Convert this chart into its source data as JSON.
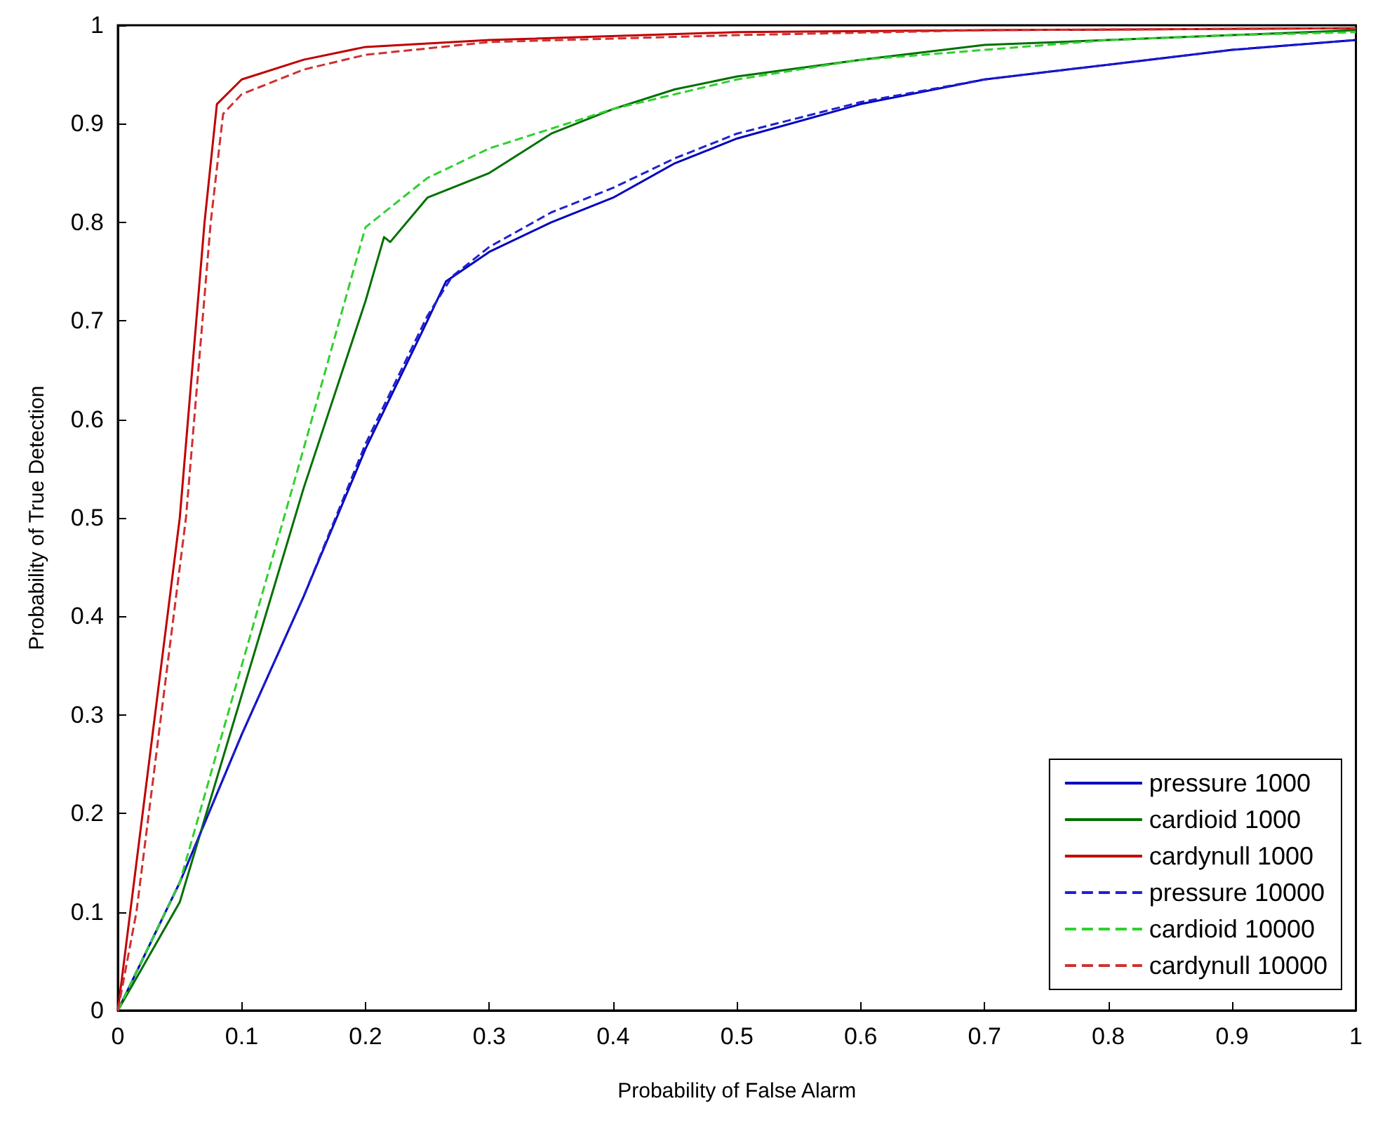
{
  "chart_data": {
    "type": "line",
    "xlabel": "Probability of False Alarm",
    "ylabel": "Probability of True Detection",
    "xlim": [
      0,
      1
    ],
    "ylim": [
      0,
      1
    ],
    "xticks": [
      0,
      0.1,
      0.2,
      0.3,
      0.4,
      0.5,
      0.6,
      0.7,
      0.8,
      0.9,
      1
    ],
    "yticks": [
      0,
      0.1,
      0.2,
      0.3,
      0.4,
      0.5,
      0.6,
      0.7,
      0.8,
      0.9,
      1
    ],
    "grid": false,
    "legend": "bottom right",
    "marker": "none",
    "series": [
      {
        "name": "pressure 1000",
        "color": "#0000c0",
        "line_style": "solid",
        "x": [
          0,
          0.05,
          0.1,
          0.15,
          0.2,
          0.25,
          0.265,
          0.3,
          0.35,
          0.4,
          0.45,
          0.5,
          0.6,
          0.7,
          0.8,
          0.9,
          1
        ],
        "values": [
          0,
          0.13,
          0.28,
          0.42,
          0.57,
          0.7,
          0.74,
          0.77,
          0.8,
          0.825,
          0.86,
          0.885,
          0.92,
          0.945,
          0.96,
          0.975,
          0.985
        ]
      },
      {
        "name": "cardioid 1000",
        "color": "#007000",
        "line_style": "solid",
        "x": [
          0,
          0.05,
          0.1,
          0.15,
          0.2,
          0.215,
          0.22,
          0.25,
          0.3,
          0.35,
          0.4,
          0.45,
          0.5,
          0.6,
          0.7,
          0.8,
          0.9,
          1
        ],
        "values": [
          0,
          0.11,
          0.32,
          0.53,
          0.72,
          0.785,
          0.78,
          0.825,
          0.85,
          0.89,
          0.915,
          0.935,
          0.948,
          0.965,
          0.98,
          0.985,
          0.99,
          0.995
        ]
      },
      {
        "name": "cardynull 1000",
        "color": "#c00000",
        "line_style": "solid",
        "x": [
          0,
          0.01,
          0.03,
          0.05,
          0.07,
          0.08,
          0.1,
          0.15,
          0.2,
          0.3,
          0.5,
          0.7,
          1
        ],
        "values": [
          0,
          0.1,
          0.3,
          0.5,
          0.8,
          0.92,
          0.945,
          0.965,
          0.978,
          0.985,
          0.993,
          0.995,
          0.997
        ]
      },
      {
        "name": "pressure 10000",
        "color": "#2020d0",
        "line_style": "dashed",
        "x": [
          0,
          0.05,
          0.1,
          0.15,
          0.2,
          0.25,
          0.27,
          0.3,
          0.35,
          0.4,
          0.45,
          0.5,
          0.6,
          0.7,
          0.8,
          0.9,
          1
        ],
        "values": [
          0,
          0.13,
          0.28,
          0.42,
          0.575,
          0.705,
          0.745,
          0.775,
          0.81,
          0.835,
          0.865,
          0.89,
          0.922,
          0.945,
          0.96,
          0.975,
          0.985
        ]
      },
      {
        "name": "cardioid 10000",
        "color": "#30d030",
        "line_style": "dashed",
        "x": [
          0,
          0.05,
          0.1,
          0.15,
          0.2,
          0.25,
          0.3,
          0.4,
          0.5,
          0.6,
          0.7,
          0.8,
          0.9,
          1
        ],
        "values": [
          0,
          0.13,
          0.35,
          0.57,
          0.795,
          0.845,
          0.875,
          0.915,
          0.945,
          0.965,
          0.975,
          0.985,
          0.99,
          0.993
        ]
      },
      {
        "name": "cardynull 10000",
        "color": "#d03030",
        "line_style": "dashed",
        "x": [
          0,
          0.015,
          0.035,
          0.055,
          0.075,
          0.085,
          0.1,
          0.15,
          0.2,
          0.3,
          0.5,
          0.7,
          1
        ],
        "values": [
          0,
          0.1,
          0.3,
          0.5,
          0.8,
          0.91,
          0.93,
          0.955,
          0.97,
          0.983,
          0.99,
          0.995,
          0.997
        ]
      }
    ]
  }
}
